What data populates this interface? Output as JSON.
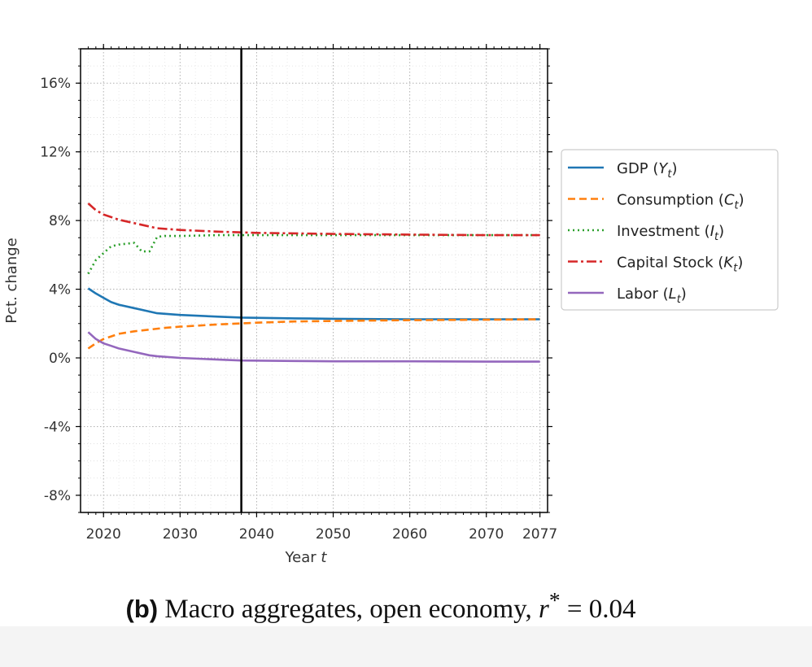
{
  "chart_data": {
    "type": "line",
    "title": "",
    "xlabel": "Year t",
    "ylabel": "Pct. change",
    "xlim": [
      2017,
      2078
    ],
    "ylim": [
      -9,
      18
    ],
    "xticks": [
      2020,
      2030,
      2040,
      2050,
      2060,
      2070,
      2077
    ],
    "xtick_labels": [
      "2020",
      "2030",
      "2040",
      "2050",
      "2060",
      "2070",
      "2077"
    ],
    "yticks": [
      -8,
      -4,
      0,
      4,
      8,
      12,
      16
    ],
    "ytick_labels": [
      "-8%",
      "-4%",
      "0%",
      "4%",
      "8%",
      "12%",
      "16%"
    ],
    "grid": true,
    "legend_position": "outside-right",
    "vline_x": 2038,
    "series": [
      {
        "name": "GDP (Yt)",
        "color": "#1f77b4",
        "style": "solid",
        "x": [
          2018,
          2019,
          2020,
          2021,
          2022,
          2024,
          2026,
          2027,
          2030,
          2035,
          2038,
          2045,
          2050,
          2060,
          2070,
          2077
        ],
        "y": [
          4.05,
          3.75,
          3.5,
          3.25,
          3.1,
          2.9,
          2.7,
          2.6,
          2.5,
          2.4,
          2.35,
          2.3,
          2.28,
          2.25,
          2.25,
          2.25
        ]
      },
      {
        "name": "Consumption (Ct)",
        "color": "#ff7f0e",
        "style": "dashed",
        "x": [
          2018,
          2019,
          2020,
          2021,
          2022,
          2024,
          2026,
          2028,
          2030,
          2035,
          2040,
          2045,
          2050,
          2060,
          2070,
          2077
        ],
        "y": [
          0.55,
          0.85,
          1.1,
          1.25,
          1.4,
          1.55,
          1.65,
          1.75,
          1.82,
          1.95,
          2.05,
          2.12,
          2.15,
          2.2,
          2.22,
          2.25
        ]
      },
      {
        "name": "Investment (It)",
        "color": "#2ca02c",
        "style": "dotted",
        "x": [
          2018,
          2019,
          2020,
          2021,
          2022,
          2023,
          2024,
          2025,
          2026,
          2027,
          2028,
          2030,
          2035,
          2040,
          2050,
          2060,
          2070,
          2077
        ],
        "y": [
          4.9,
          5.7,
          6.1,
          6.5,
          6.6,
          6.65,
          6.7,
          6.2,
          6.2,
          7.05,
          7.1,
          7.1,
          7.15,
          7.15,
          7.15,
          7.15,
          7.15,
          7.15
        ]
      },
      {
        "name": "Capital Stock (Kt)",
        "color": "#d62728",
        "style": "dashdot",
        "x": [
          2018,
          2019,
          2020,
          2021,
          2022,
          2024,
          2026,
          2027,
          2030,
          2035,
          2040,
          2045,
          2050,
          2060,
          2070,
          2077
        ],
        "y": [
          9.0,
          8.6,
          8.35,
          8.2,
          8.05,
          7.85,
          7.65,
          7.55,
          7.45,
          7.35,
          7.28,
          7.25,
          7.22,
          7.18,
          7.15,
          7.15
        ]
      },
      {
        "name": "Labor (Lt)",
        "color": "#9467bd",
        "style": "solid",
        "x": [
          2018,
          2019,
          2020,
          2021,
          2022,
          2024,
          2026,
          2027,
          2030,
          2035,
          2038,
          2045,
          2050,
          2060,
          2070,
          2077
        ],
        "y": [
          1.5,
          1.1,
          0.85,
          0.7,
          0.55,
          0.35,
          0.15,
          0.1,
          0.0,
          -0.1,
          -0.15,
          -0.18,
          -0.2,
          -0.2,
          -0.22,
          -0.22
        ]
      }
    ]
  },
  "legend": [
    {
      "base": "GDP (",
      "var": "Y",
      "sub": "t",
      "close": ")"
    },
    {
      "base": "Consumption (",
      "var": "C",
      "sub": "t",
      "close": ")"
    },
    {
      "base": "Investment (",
      "var": "I",
      "sub": "t",
      "close": ")"
    },
    {
      "base": "Capital Stock (",
      "var": "K",
      "sub": "t",
      "close": ")"
    },
    {
      "base": "Labor (",
      "var": "L",
      "sub": "t",
      "close": ")"
    }
  ],
  "caption": {
    "letter": "(b)",
    "text": " Macro aggregates, open economy, ",
    "math_var": "r",
    "math_sup": "*",
    "math_rest": " = 0.04"
  }
}
